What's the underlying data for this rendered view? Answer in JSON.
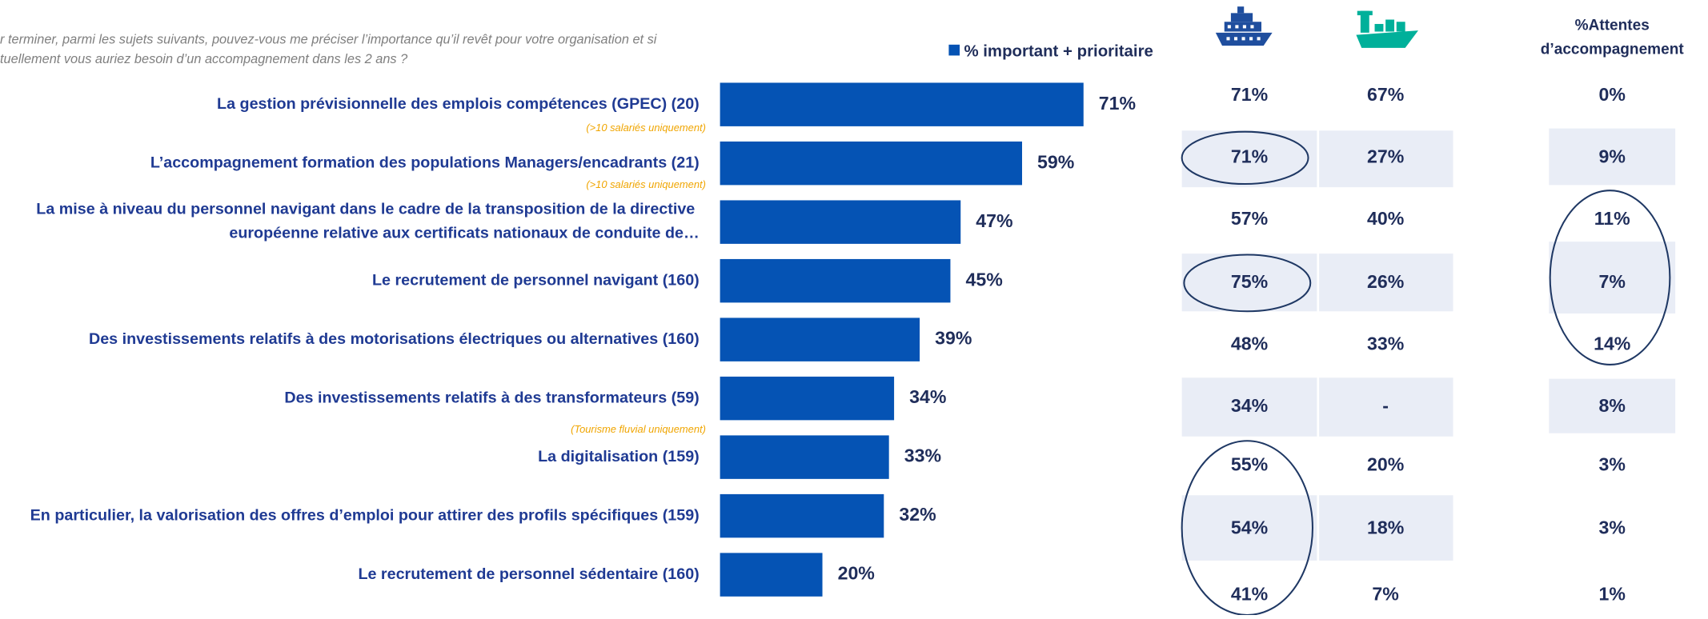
{
  "chart_data": {
    "type": "bar",
    "question": [
      "r terminer, parmi les sujets suivants, pouvez-vous me préciser l’importance qu’il revêt pour votre organisation et si",
      "tuellement vous auriez besoin d’un accompagnement dans les 2 ans ?"
    ],
    "legend": "% important + prioritaire",
    "color": "#0553b4",
    "categories": [
      "La gestion prévisionnelle des emplois compétences (GPEC) (20)",
      "L’accompagnement formation des populations Managers/encadrants (21)",
      "La mise à niveau du personnel navigant dans le cadre de la transposition de la directive européenne relative aux certificats nationaux de conduite de…",
      "Le recrutement de personnel navigant (160)",
      "Des investissements relatifs à des motorisations électriques ou alternatives (160)",
      "Des investissements relatifs à des transformateurs (59)",
      "La digitalisation (159)",
      "En particulier, la valorisation des offres d’emploi pour attirer des profils spécifiques (159)",
      "Le recrutement de personnel sédentaire (160)"
    ],
    "values": [
      71,
      59,
      47,
      45,
      39,
      34,
      33,
      32,
      20
    ],
    "value_labels": [
      "71%",
      "59%",
      "47%",
      "45%",
      "39%",
      "34%",
      "33%",
      "32%",
      "20%"
    ],
    "notes": [
      "(>10 salariés uniquement)",
      "(>10 salariés uniquement)",
      "(Tourisme fluvial uniquement)"
    ],
    "table": {
      "header": [
        "%Attentes",
        "d’accompagnement"
      ],
      "columns": [
        [
          "71%",
          "71%",
          "57%",
          "75%",
          "48%",
          "34%",
          "55%",
          "54%",
          "41%"
        ],
        [
          "67%",
          "27%",
          "40%",
          "26%",
          "33%",
          "-",
          "20%",
          "18%",
          "7%"
        ],
        [
          "0%",
          "9%",
          "11%",
          "7%",
          "14%",
          "8%",
          "3%",
          "3%",
          "1%"
        ]
      ]
    }
  }
}
